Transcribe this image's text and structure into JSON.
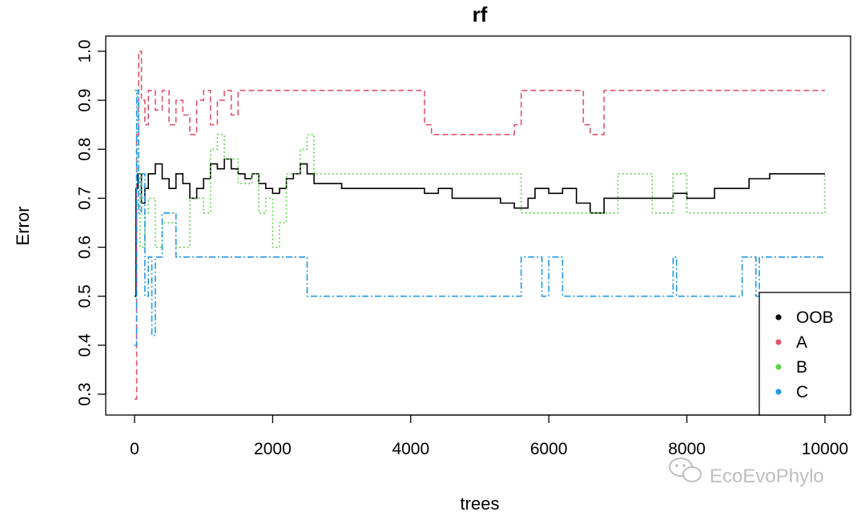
{
  "chart_data": {
    "type": "line",
    "title": "rf",
    "xlabel": "trees",
    "ylabel": "Error",
    "xlim": [
      0,
      10000
    ],
    "ylim": [
      0.28,
      1.0
    ],
    "x_ticks": [
      0,
      2000,
      4000,
      6000,
      8000,
      10000
    ],
    "x_tick_labels": [
      "0",
      "2000",
      "4000",
      "6000",
      "8000",
      "10000"
    ],
    "y_ticks": [
      0.3,
      0.4,
      0.5,
      0.6,
      0.7,
      0.8,
      0.9,
      1.0
    ],
    "y_tick_labels": [
      "0.3",
      "0.4",
      "0.5",
      "0.6",
      "0.7",
      "0.8",
      "0.9",
      "1.0"
    ],
    "grid": false,
    "legend_position": "bottom-right",
    "series": [
      {
        "name": "OOB",
        "color": "#000000",
        "dash": "solid",
        "x": [
          1,
          20,
          50,
          100,
          150,
          200,
          300,
          400,
          500,
          600,
          700,
          800,
          900,
          1000,
          1100,
          1200,
          1300,
          1400,
          1500,
          1600,
          1700,
          1800,
          1900,
          2000,
          2100,
          2200,
          2300,
          2400,
          2500,
          2600,
          3000,
          3500,
          4000,
          4200,
          4400,
          4600,
          5000,
          5300,
          5500,
          5700,
          5800,
          6000,
          6200,
          6400,
          6600,
          6800,
          7000,
          7500,
          7800,
          8000,
          8400,
          8900,
          9200,
          10000
        ],
        "values": [
          0.5,
          0.72,
          0.75,
          0.69,
          0.72,
          0.75,
          0.77,
          0.74,
          0.72,
          0.75,
          0.73,
          0.7,
          0.72,
          0.74,
          0.77,
          0.76,
          0.78,
          0.76,
          0.75,
          0.74,
          0.75,
          0.73,
          0.72,
          0.71,
          0.72,
          0.74,
          0.75,
          0.77,
          0.75,
          0.73,
          0.72,
          0.72,
          0.72,
          0.71,
          0.72,
          0.7,
          0.7,
          0.69,
          0.68,
          0.7,
          0.72,
          0.71,
          0.72,
          0.69,
          0.67,
          0.7,
          0.7,
          0.7,
          0.71,
          0.7,
          0.72,
          0.74,
          0.75,
          0.75
        ]
      },
      {
        "name": "A",
        "color": "#DF536B",
        "dash": "dashed",
        "x": [
          1,
          30,
          60,
          100,
          150,
          200,
          300,
          400,
          500,
          600,
          700,
          800,
          900,
          1000,
          1100,
          1200,
          1300,
          1400,
          1500,
          3800,
          4200,
          4300,
          4500,
          5000,
          5400,
          5500,
          5600,
          5900,
          6500,
          6600,
          6800,
          8400,
          8500,
          10000
        ],
        "values": [
          0.29,
          0.83,
          1.0,
          0.9,
          0.85,
          0.92,
          0.88,
          0.92,
          0.85,
          0.9,
          0.87,
          0.83,
          0.9,
          0.92,
          0.85,
          0.9,
          0.92,
          0.87,
          0.92,
          0.92,
          0.85,
          0.83,
          0.83,
          0.83,
          0.83,
          0.85,
          0.92,
          0.92,
          0.85,
          0.83,
          0.92,
          0.92,
          0.92,
          0.92
        ]
      },
      {
        "name": "B",
        "color": "#61D04F",
        "dash": "dotted",
        "x": [
          1,
          40,
          80,
          150,
          200,
          300,
          400,
          600,
          800,
          1000,
          1100,
          1200,
          1300,
          1500,
          1700,
          1800,
          1900,
          2000,
          2100,
          2200,
          2400,
          2500,
          2600,
          2700,
          5300,
          5600,
          5900,
          6500,
          6800,
          7000,
          7500,
          7800,
          8000,
          10000
        ],
        "values": [
          0.92,
          0.75,
          0.6,
          0.67,
          0.7,
          0.6,
          0.65,
          0.6,
          0.7,
          0.67,
          0.8,
          0.83,
          0.78,
          0.73,
          0.75,
          0.67,
          0.7,
          0.6,
          0.65,
          0.75,
          0.8,
          0.83,
          0.75,
          0.75,
          0.75,
          0.67,
          0.67,
          0.67,
          0.67,
          0.75,
          0.67,
          0.75,
          0.67,
          0.75
        ]
      },
      {
        "name": "C",
        "color": "#2297E6",
        "dash": "dashdot",
        "x": [
          1,
          30,
          60,
          100,
          150,
          200,
          250,
          300,
          400,
          600,
          800,
          1000,
          1200,
          1300,
          2000,
          2500,
          3000,
          4000,
          5500,
          5600,
          5900,
          6000,
          6200,
          6300,
          7800,
          7850,
          8800,
          9000,
          9050,
          10000
        ],
        "values": [
          0.4,
          0.92,
          0.67,
          0.75,
          0.5,
          0.58,
          0.42,
          0.58,
          0.67,
          0.58,
          0.58,
          0.58,
          0.58,
          0.58,
          0.58,
          0.5,
          0.5,
          0.5,
          0.5,
          0.58,
          0.5,
          0.58,
          0.5,
          0.5,
          0.58,
          0.5,
          0.58,
          0.5,
          0.58,
          0.58
        ]
      }
    ]
  },
  "watermark": {
    "text": "EcoEvoPhylo",
    "icon": "wechat-icon"
  }
}
